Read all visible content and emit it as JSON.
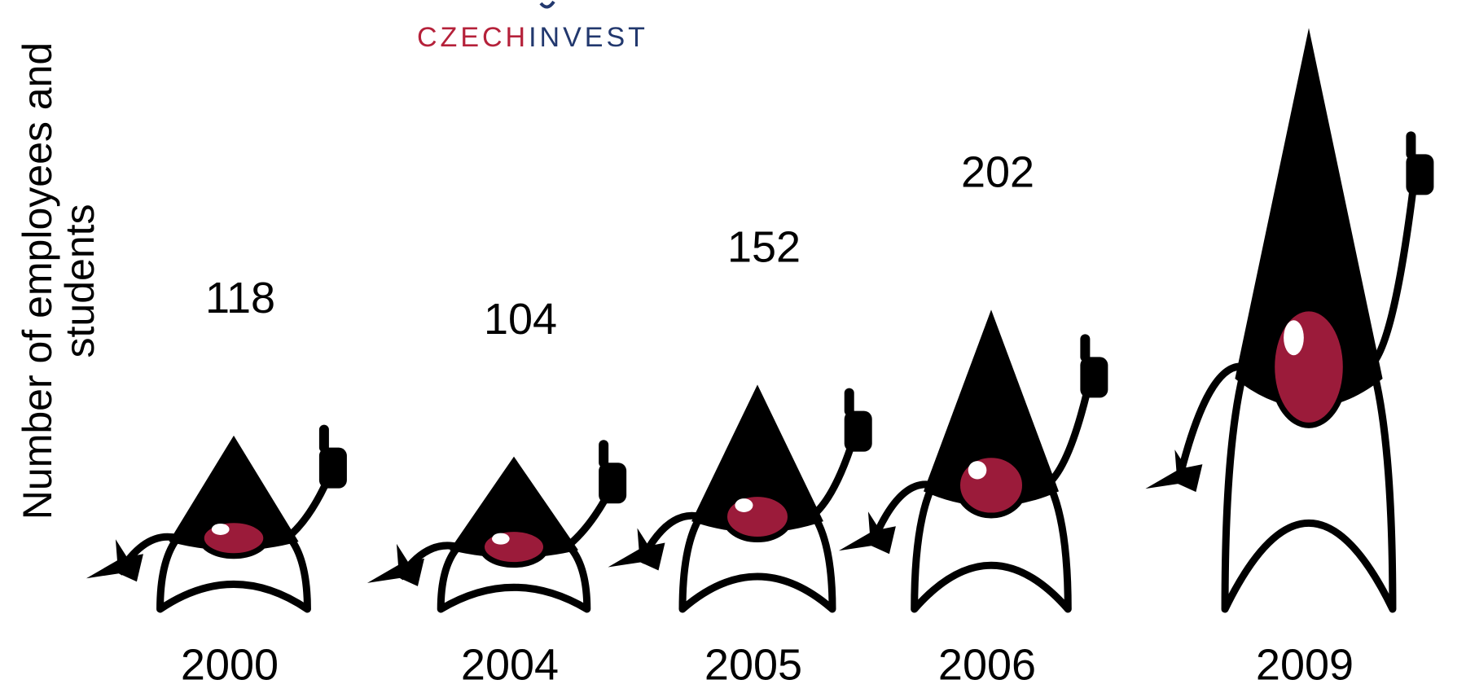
{
  "chart_data": {
    "type": "pictograph",
    "y_label": [
      "Number of employees and",
      "students"
    ],
    "logo": [
      {
        "text": "CZECH",
        "color": "#b5213a"
      },
      {
        "text": "INVEST",
        "color": "#22386e"
      }
    ],
    "categories": [
      "2000",
      "2004",
      "2005",
      "2006",
      "2009"
    ],
    "values": [
      118,
      104,
      152,
      202,
      390
    ],
    "value_labels": [
      "118",
      "104",
      "152",
      "202",
      null
    ],
    "body_color": "#ffffff",
    "head_color": "#000000",
    "nose_color": "#9b1b3a"
  }
}
